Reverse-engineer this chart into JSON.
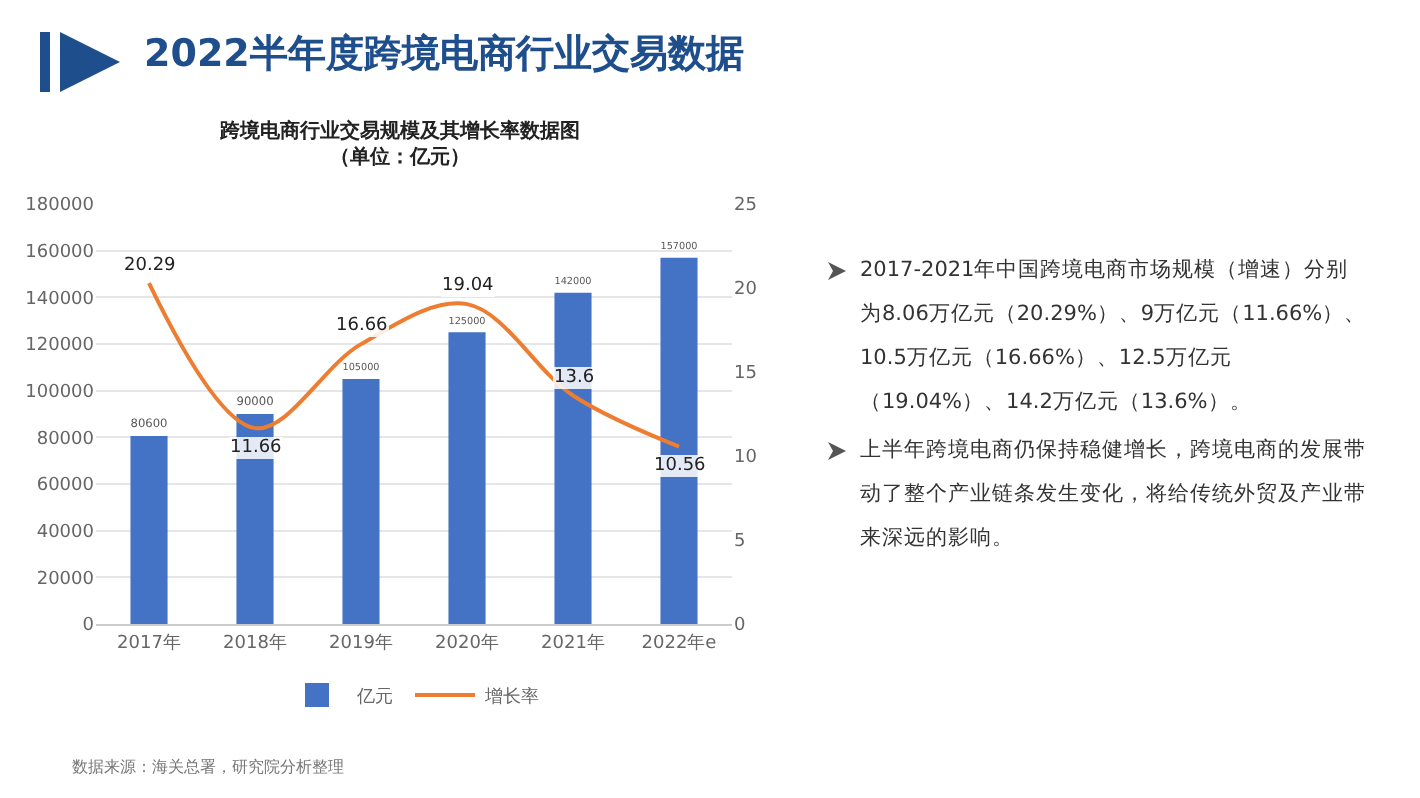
{
  "chart_data": {
    "type": "bar",
    "title": "跨境电商行业交易规模及其增长率数据图",
    "subtitle": "（单位：亿元）",
    "categories": [
      "2017年",
      "2018年",
      "2019年",
      "2020年",
      "2021年",
      "2022年e"
    ],
    "series": [
      {
        "name": "亿元",
        "color": "#4472c4",
        "values": [
          80600,
          90000,
          105000,
          125000,
          142000,
          157000
        ]
      },
      {
        "name": "增长率",
        "type": "line",
        "axis": "y2",
        "color": "#ed7d31",
        "values": [
          20.29,
          11.66,
          16.66,
          19.04,
          13.6,
          10.56
        ]
      }
    ],
    "ylim": [
      0,
      180000
    ],
    "yticks": [
      0,
      20000,
      40000,
      60000,
      80000,
      100000,
      120000,
      140000,
      160000,
      180000
    ],
    "y2lim": [
      0,
      25
    ],
    "y2ticks": [
      0,
      5,
      10,
      15,
      20,
      25
    ],
    "data_labels": true,
    "grid": "y",
    "legend": "bottom",
    "marker": "none",
    "line_style": "solid",
    "annotations": [
      "2022半年度跨境电商行业交易数据",
      "2017-2021年中国跨境电商市场规模（增速）分别为8.06万亿元（20.29%）、9万亿元（11.66%）、10.5万亿元（16.66%）、12.5万亿元（19.04%）、14.2万亿元（13.6%）。",
      "上半年跨境电商仍保持稳健增长，跨境电商的发展带动了整个产业链条发生变化，将给传统外贸及产业带来深远的影响。",
      "数据来源：海关总署，研究院分析整理"
    ]
  }
}
